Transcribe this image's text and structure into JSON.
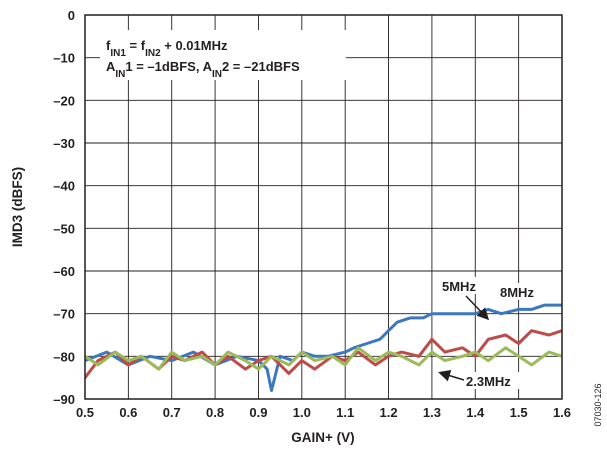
{
  "chart_data": {
    "type": "line",
    "xlabel": "GAIN+ (V)",
    "ylabel": "IMD3 (dBFS)",
    "xlim": [
      0.5,
      1.6
    ],
    "ylim": [
      -90,
      0
    ],
    "x_ticks": [
      "0.5",
      "0.6",
      "0.7",
      "0.8",
      "0.9",
      "1.0",
      "1.1",
      "1.2",
      "1.3",
      "1.4",
      "1.5",
      "1.6"
    ],
    "y_ticks": [
      "0",
      "–10",
      "–20",
      "–30",
      "–40",
      "–50",
      "–60",
      "–70",
      "–80",
      "–90"
    ],
    "grid": true,
    "annotations": {
      "freq_line": {
        "f1": "f",
        "f1_sub": "IN1",
        "mid": " = f",
        "f2_sub": "IN2",
        "tail": " + 0.01MHz"
      },
      "amp_line": {
        "a1": "A",
        "a1_sub": "IN",
        "a1_tail": "1 = –1dBFS, A",
        "a2_sub": "IN",
        "a2_tail": "2 = –21dBFS"
      }
    },
    "series": [
      {
        "name": "8MHz",
        "color": "#3c78c0",
        "x": [
          0.5,
          0.55,
          0.6,
          0.65,
          0.7,
          0.75,
          0.8,
          0.85,
          0.9,
          0.92,
          0.93,
          0.95,
          0.98,
          1.0,
          1.03,
          1.06,
          1.1,
          1.12,
          1.15,
          1.18,
          1.2,
          1.22,
          1.25,
          1.28,
          1.3,
          1.33,
          1.36,
          1.4,
          1.43,
          1.46,
          1.5,
          1.53,
          1.56,
          1.6
        ],
        "y": [
          -81,
          -79,
          -82,
          -80,
          -81,
          -79,
          -82,
          -80,
          -81,
          -83,
          -88,
          -80,
          -81,
          -79,
          -80,
          -80,
          -79,
          -78,
          -77,
          -76,
          -74,
          -72,
          -71,
          -71,
          -70,
          -70,
          -70,
          -70,
          -69,
          -70,
          -69,
          -69,
          -68,
          -68
        ]
      },
      {
        "name": "5MHz",
        "color": "#be4b48",
        "x": [
          0.5,
          0.53,
          0.57,
          0.6,
          0.63,
          0.67,
          0.7,
          0.73,
          0.77,
          0.8,
          0.83,
          0.87,
          0.9,
          0.93,
          0.97,
          1.0,
          1.03,
          1.07,
          1.1,
          1.13,
          1.17,
          1.2,
          1.23,
          1.27,
          1.3,
          1.33,
          1.37,
          1.4,
          1.43,
          1.47,
          1.5,
          1.53,
          1.57,
          1.6
        ],
        "y": [
          -85,
          -81,
          -79,
          -82,
          -80,
          -83,
          -80,
          -81,
          -79,
          -82,
          -80,
          -83,
          -81,
          -80,
          -84,
          -81,
          -83,
          -80,
          -81,
          -79,
          -82,
          -80,
          -79,
          -80,
          -76,
          -79,
          -78,
          -80,
          -76,
          -75,
          -77,
          -74,
          -75,
          -74
        ]
      },
      {
        "name": "2.3MHz",
        "color": "#9bbb59",
        "x": [
          0.5,
          0.53,
          0.57,
          0.6,
          0.63,
          0.67,
          0.7,
          0.73,
          0.77,
          0.8,
          0.83,
          0.87,
          0.9,
          0.93,
          0.97,
          1.0,
          1.03,
          1.07,
          1.1,
          1.13,
          1.17,
          1.2,
          1.23,
          1.27,
          1.3,
          1.33,
          1.37,
          1.4,
          1.43,
          1.47,
          1.5,
          1.53,
          1.57,
          1.6
        ],
        "y": [
          -80,
          -82,
          -79,
          -81,
          -80,
          -83,
          -79,
          -81,
          -80,
          -82,
          -79,
          -81,
          -83,
          -80,
          -82,
          -79,
          -81,
          -80,
          -82,
          -78,
          -81,
          -79,
          -80,
          -82,
          -79,
          -81,
          -80,
          -79,
          -81,
          -78,
          -80,
          -82,
          -79,
          -80
        ]
      }
    ],
    "series_labels": [
      {
        "text": "8MHz",
        "series": "8MHz"
      },
      {
        "text": "5MHz",
        "series": "5MHz"
      },
      {
        "text": "2.3MHz",
        "series": "2.3MHz"
      }
    ],
    "figure_id": "07030-126"
  }
}
